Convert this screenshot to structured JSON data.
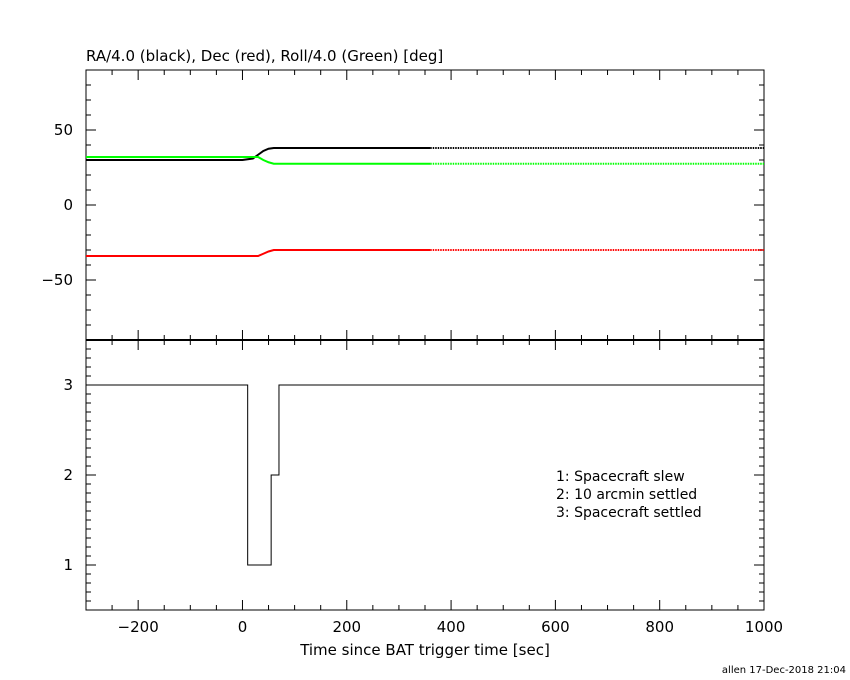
{
  "chart_data": [
    {
      "type": "line",
      "title": "RA/4.0 (black), Dec (red), Roll/4.0 (Green) [deg]",
      "ylim": [
        -90,
        90
      ],
      "xlim": [
        -300,
        1000
      ],
      "yticks": [
        50,
        0,
        -50
      ],
      "ytick_labels": [
        "50",
        "0",
        "−50"
      ],
      "grid": false,
      "series": [
        {
          "name": "RA/4.0",
          "color": "#000000",
          "solid_until": 360,
          "x": [
            -300,
            0,
            20,
            30,
            40,
            50,
            60,
            360,
            1000
          ],
          "y": [
            30,
            30,
            31,
            33.5,
            36,
            37.5,
            38,
            38,
            38
          ]
        },
        {
          "name": "Dec",
          "color": "#ff0000",
          "solid_until": 360,
          "x": [
            -300,
            30,
            40,
            50,
            60,
            360,
            1000
          ],
          "y": [
            -34,
            -34,
            -32.5,
            -31,
            -30,
            -30,
            -30
          ]
        },
        {
          "name": "Roll/4.0",
          "color": "#00ff00",
          "solid_until": 360,
          "x": [
            -300,
            30,
            40,
            50,
            60,
            360,
            1000
          ],
          "y": [
            32,
            32,
            30,
            28.5,
            27.5,
            27.5,
            27.5
          ]
        }
      ]
    },
    {
      "type": "line",
      "xlabel": "Time since BAT trigger time [sec]",
      "xlim": [
        -300,
        1000
      ],
      "ylim": [
        0.5,
        3.5
      ],
      "xticks": [
        -200,
        0,
        200,
        400,
        600,
        800,
        1000
      ],
      "xtick_labels": [
        "−200",
        "0",
        "200",
        "400",
        "600",
        "800",
        "1000"
      ],
      "yticks": [
        1,
        2,
        3
      ],
      "ytick_labels": [
        "1",
        "2",
        "3"
      ],
      "grid": false,
      "series": [
        {
          "color": "#000000",
          "step": true,
          "x": [
            -300,
            10,
            10,
            55,
            55,
            70,
            70,
            1000
          ],
          "y": [
            3,
            3,
            1,
            1,
            2,
            2,
            3,
            3
          ]
        }
      ],
      "annotations": [
        "1: Spacecraft slew",
        "2: 10 arcmin settled",
        "3: Spacecraft settled"
      ]
    }
  ],
  "footer": "allen 17-Dec-2018 21:04"
}
